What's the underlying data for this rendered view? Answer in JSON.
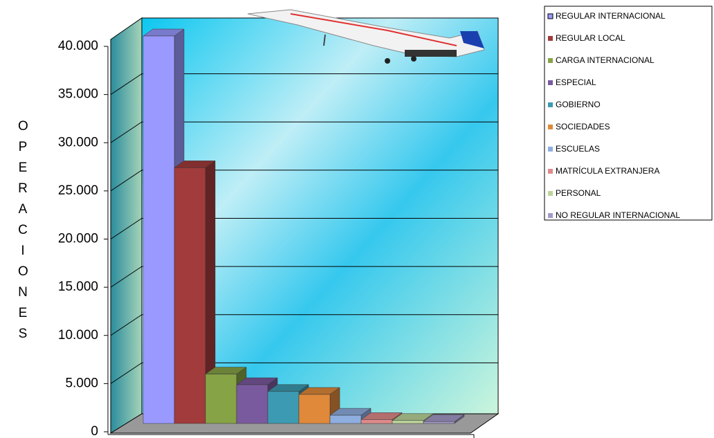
{
  "chart_data": {
    "type": "bar3d",
    "y_label": "OPERACIONES",
    "ylim": [
      0,
      40000
    ],
    "yticks": [
      0,
      {
        "value": 5000,
        "label": "5.000"
      },
      {
        "value": 10000,
        "label": "10.000"
      },
      {
        "value": 15000,
        "label": "15.000"
      },
      {
        "value": 20000,
        "label": "20.000"
      },
      {
        "value": 25000,
        "label": "25.000"
      },
      {
        "value": 30000,
        "label": "30.000"
      },
      {
        "value": 35000,
        "label": "35.000"
      },
      {
        "value": 40000,
        "label": "40.000"
      }
    ],
    "grid": true,
    "legend": "right",
    "series": [
      {
        "name": "REGULAR INTERNACIONAL",
        "color": "#9999ff",
        "values": [
          40000
        ]
      },
      {
        "name": "REGULAR LOCAL",
        "color": "#a23b3b",
        "values": [
          26400
        ]
      },
      {
        "name": "CARGA INTERNACIONAL",
        "color": "#86a346",
        "values": [
          5100
        ]
      },
      {
        "name": "ESPECIAL",
        "color": "#7a5a9e",
        "values": [
          4000
        ]
      },
      {
        "name": "GOBIERNO",
        "color": "#3c9bb2",
        "values": [
          3300
        ]
      },
      {
        "name": "SOCIEDADES",
        "color": "#e0893a",
        "values": [
          3000
        ]
      },
      {
        "name": "ESCUELAS",
        "color": "#8eaee0",
        "values": [
          850
        ]
      },
      {
        "name": "MATRÍCULA EXTRANJERA",
        "color": "#e08a8a",
        "values": [
          400
        ]
      },
      {
        "name": "PERSONAL",
        "color": "#bcd49a",
        "values": [
          300
        ]
      },
      {
        "name": "NO REGULAR INTERNACIONAL",
        "color": "#a49ac8",
        "values": [
          200
        ]
      }
    ]
  }
}
